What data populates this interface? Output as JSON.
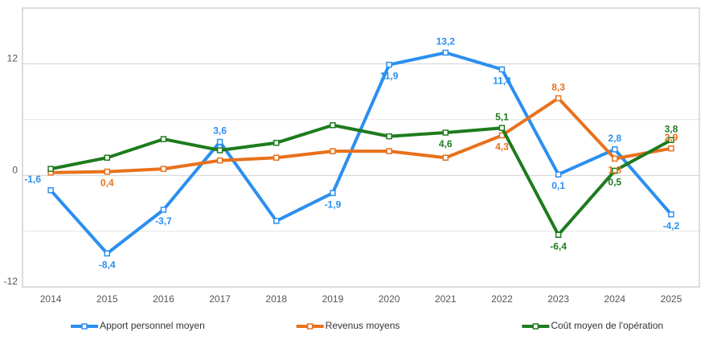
{
  "chart_data": {
    "type": "line",
    "categories": [
      "2014",
      "2015",
      "2016",
      "2017",
      "2018",
      "2019",
      "2020",
      "2021",
      "2022",
      "2023",
      "2024",
      "2025"
    ],
    "series": [
      {
        "name": "Apport personnel moyen",
        "color": "#2b8ff0",
        "values": [
          -1.6,
          -8.4,
          -3.7,
          3.6,
          -4.9,
          -1.9,
          11.9,
          13.2,
          11.4,
          0.1,
          2.8,
          -4.2
        ],
        "value_labels": [
          "-1,6",
          "-8,4",
          "-3,7",
          "3,6",
          null,
          "-1,9",
          "11,9",
          "13,2",
          "11,4",
          "0,1",
          "2,8",
          "-4,2"
        ]
      },
      {
        "name": "Revenus moyens",
        "color": "#e8711c",
        "values": [
          0.3,
          0.4,
          0.7,
          1.6,
          1.9,
          2.6,
          2.6,
          1.9,
          4.3,
          8.3,
          1.8,
          2.9
        ],
        "value_labels": [
          null,
          "0,4",
          null,
          null,
          null,
          null,
          null,
          null,
          "4,3",
          "8,3",
          "1,8",
          "2,9"
        ]
      },
      {
        "name": "Coût moyen de l'opération",
        "color": "#1e7b1e",
        "values": [
          0.7,
          1.9,
          3.9,
          2.7,
          3.5,
          5.4,
          4.2,
          4.6,
          5.1,
          -6.4,
          0.5,
          3.8
        ],
        "value_labels": [
          null,
          null,
          null,
          null,
          null,
          null,
          null,
          "4,6",
          "5,1",
          "-6,4",
          "0,5",
          "3,8"
        ]
      }
    ],
    "ylim": [
      -12,
      18
    ],
    "yticks": [
      -12,
      0,
      12
    ],
    "minor_yticks": [
      -6,
      6
    ],
    "grid": true,
    "legend": "bottom"
  }
}
